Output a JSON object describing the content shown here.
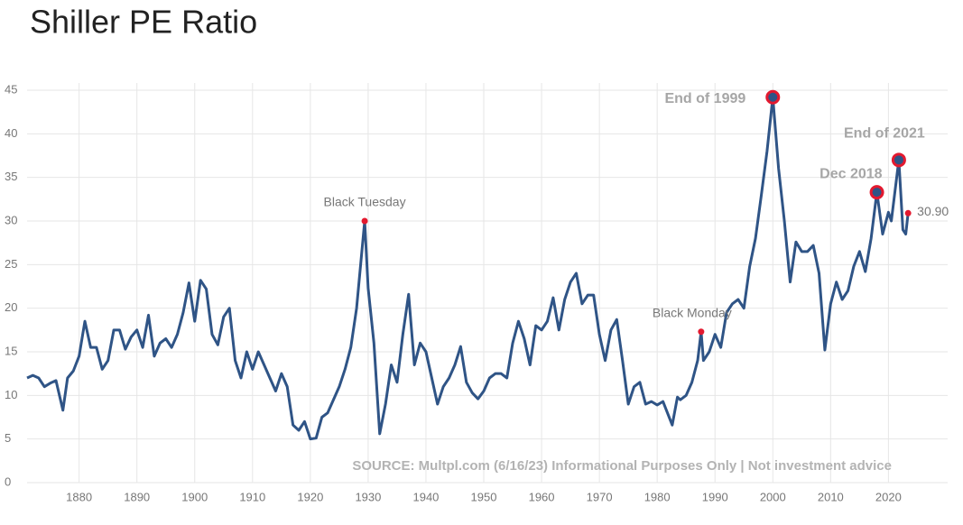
{
  "chart_data": {
    "type": "line",
    "title": "Shiller PE Ratio",
    "x": [
      1871,
      1872,
      1873,
      1874,
      1875,
      1876,
      1877.2,
      1878,
      1879,
      1880,
      1881,
      1882,
      1883,
      1884,
      1885,
      1886,
      1887,
      1888,
      1889,
      1890,
      1891,
      1892,
      1893,
      1894,
      1895,
      1896,
      1897,
      1898,
      1899,
      1900,
      1901,
      1902,
      1903,
      1904,
      1905,
      1906,
      1907,
      1908,
      1909,
      1910,
      1911,
      1912,
      1913,
      1914,
      1915,
      1916,
      1917,
      1918,
      1919,
      1920,
      1921,
      1922,
      1923,
      1924,
      1925,
      1926,
      1927,
      1928,
      1929.4,
      1930,
      1931,
      1932,
      1933,
      1934,
      1935,
      1936,
      1937,
      1938,
      1939,
      1940,
      1941,
      1942,
      1943,
      1944,
      1945,
      1946,
      1947,
      1948,
      1949,
      1950,
      1951,
      1952,
      1953,
      1954,
      1955,
      1956,
      1957,
      1958,
      1959,
      1960,
      1961,
      1962,
      1963,
      1964,
      1965,
      1966,
      1967,
      1968,
      1969,
      1970,
      1971,
      1972,
      1973,
      1974,
      1975,
      1976,
      1977,
      1978,
      1979,
      1980,
      1981,
      1982.6,
      1983.5,
      1984,
      1985,
      1986,
      1987,
      1987.6,
      1988,
      1989,
      1990,
      1991,
      1992,
      1993,
      1994,
      1995,
      1996,
      1997,
      1998,
      1999,
      2000,
      2001,
      2002,
      2003,
      2004,
      2005,
      2006,
      2007,
      2008,
      2009,
      2010,
      2011,
      2012,
      2013,
      2014,
      2015,
      2016,
      2017,
      2018,
      2019,
      2020,
      2020.5,
      2021.8,
      2022.5,
      2023,
      2023.4
    ],
    "series": [
      {
        "name": "Shiller PE Ratio",
        "color": "#2f5486",
        "values": [
          12.0,
          12.3,
          12.0,
          11.0,
          11.4,
          11.7,
          8.3,
          12.0,
          12.8,
          14.5,
          18.5,
          15.5,
          15.5,
          13.0,
          14.0,
          17.5,
          17.5,
          15.3,
          16.7,
          17.5,
          15.5,
          19.2,
          14.5,
          16.0,
          16.5,
          15.5,
          17.0,
          19.5,
          22.9,
          18.5,
          23.2,
          22.2,
          17.0,
          15.8,
          19.0,
          20.0,
          14.0,
          12.0,
          15.0,
          13.0,
          15.0,
          13.5,
          12.0,
          10.5,
          12.5,
          11.0,
          6.6,
          6.0,
          7.0,
          5.0,
          5.1,
          7.5,
          8.0,
          9.5,
          11.0,
          13.0,
          15.5,
          20.0,
          30.0,
          22.3,
          16.0,
          5.6,
          9.0,
          13.5,
          11.5,
          17.0,
          21.6,
          13.5,
          16.0,
          15.0,
          12.0,
          9.0,
          11.0,
          12.0,
          13.5,
          15.6,
          11.5,
          10.3,
          9.6,
          10.5,
          12.0,
          12.5,
          12.5,
          12.0,
          16.0,
          18.5,
          16.5,
          13.5,
          18.0,
          17.5,
          18.5,
          21.2,
          17.5,
          21.0,
          23.0,
          24.0,
          20.5,
          21.5,
          21.5,
          17.0,
          14.0,
          17.5,
          18.7,
          14.0,
          9.0,
          11.0,
          11.5,
          9.0,
          9.3,
          8.9,
          9.3,
          6.6,
          9.8,
          9.5,
          10.0,
          11.5,
          14.0,
          17.3,
          14.0,
          15.0,
          17.0,
          15.5,
          19.5,
          20.5,
          21.0,
          20.0,
          24.8,
          28.0,
          32.9,
          38.0,
          44.2,
          36.0,
          30.0,
          23.0,
          27.6,
          26.5,
          26.5,
          27.2,
          24.0,
          15.2,
          20.5,
          23.0,
          21.0,
          22.0,
          24.8,
          26.5,
          24.2,
          28.0,
          33.3,
          28.5,
          31.0,
          30.0,
          37.0,
          29.0,
          28.5,
          30.9
        ]
      }
    ],
    "annotations": [
      {
        "x": 1929.4,
        "y": 30.0,
        "label": "Black Tuesday",
        "style": "dot"
      },
      {
        "x": 1987.6,
        "y": 17.3,
        "label": "Black Monday",
        "style": "dot"
      },
      {
        "x": 2000,
        "y": 44.2,
        "label": "End of 1999",
        "style": "ring"
      },
      {
        "x": 2021.8,
        "y": 37.0,
        "label": "End of 2021",
        "style": "ring"
      },
      {
        "x": 2018,
        "y": 33.3,
        "label": "Dec 2018",
        "style": "ring"
      },
      {
        "x": 2023.4,
        "y": 30.9,
        "label": "30.90",
        "style": "dot"
      }
    ],
    "source": "SOURCE: Multpl.com (6/16/23) Informational Purposes Only | Not investment advice",
    "xlim": [
      1871,
      2024
    ],
    "ylim": [
      0,
      45
    ],
    "xticks": [
      1880,
      1890,
      1900,
      1910,
      1920,
      1930,
      1940,
      1950,
      1960,
      1970,
      1980,
      1990,
      2000,
      2010,
      2020
    ],
    "yticks": [
      0,
      5,
      10,
      15,
      20,
      25,
      30,
      35,
      40,
      45
    ],
    "grid": true
  }
}
